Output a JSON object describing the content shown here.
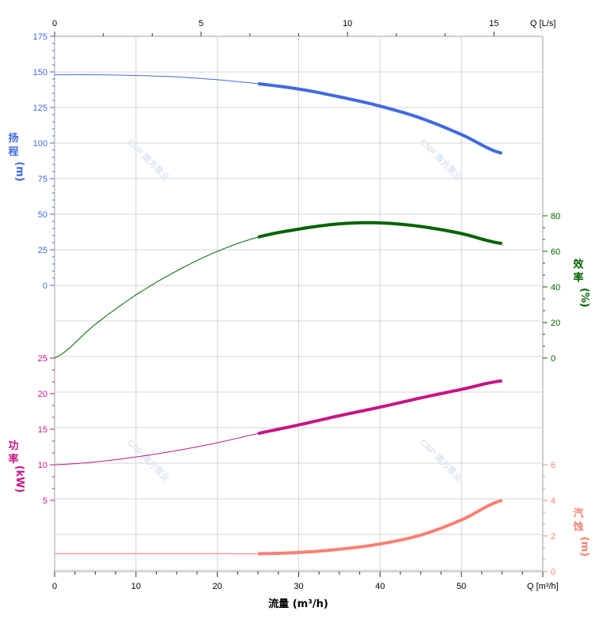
{
  "chart_data": {
    "type": "line",
    "title": "",
    "xlabel": "流量 (m³/h)",
    "x_axis_end_label": "Q [m³/h]",
    "top_axis_label": "Q [L/s]",
    "xlim": [
      0,
      60
    ],
    "x_ticks": [
      0,
      10,
      20,
      30,
      40,
      50
    ],
    "top_xlim_ls": [
      0,
      16.67
    ],
    "top_ticks": [
      0,
      5,
      10,
      15
    ],
    "grid": true,
    "axes": {
      "head": {
        "label": [
          "扬",
          "程",
          "(m)"
        ],
        "ylim": [
          -200,
          175
        ],
        "ticks": [
          0,
          25,
          50,
          75,
          100,
          125,
          150,
          175
        ],
        "color": "#4169e1",
        "side": "left"
      },
      "power": {
        "label": [
          "功",
          "率",
          "(kW)"
        ],
        "ylim": [
          0,
          30
        ],
        "ticks": [
          5,
          10,
          15,
          20,
          25
        ],
        "color": "#c71585",
        "side": "left"
      },
      "efficiency": {
        "label": [
          "效",
          "率",
          "(%)"
        ],
        "ylim": [
          0,
          80
        ],
        "ticks": [
          0,
          20,
          40,
          60,
          80
        ],
        "color": "#006400",
        "side": "right"
      },
      "npsh": {
        "label": [
          "汽",
          "蚀",
          "(m)"
        ],
        "ylim": [
          0,
          6
        ],
        "ticks": [
          0,
          2,
          4,
          6
        ],
        "color": "#fa8072",
        "side": "right"
      }
    },
    "operating_range": [
      25,
      55
    ],
    "x": [
      0,
      5,
      10,
      15,
      20,
      25,
      30,
      35,
      40,
      45,
      50,
      55
    ],
    "series": [
      {
        "name": "Head",
        "axis": "head",
        "color": "#4169e1",
        "values": [
          148,
          148,
          147.5,
          146.5,
          144.5,
          141.7,
          138,
          132.5,
          126,
          117.5,
          106,
          92.8
        ]
      },
      {
        "name": "Efficiency",
        "axis": "efficiency",
        "color": "#006400",
        "values": [
          0,
          19,
          35.5,
          49,
          60,
          68,
          72.5,
          75.5,
          76,
          74,
          70,
          64.4
        ]
      },
      {
        "name": "Power",
        "axis": "power",
        "color": "#c71585",
        "values": [
          10,
          10.4,
          11.1,
          12,
          13.1,
          14.4,
          15.6,
          16.9,
          18.1,
          19.4,
          20.6,
          21.8
        ]
      },
      {
        "name": "NPSH",
        "axis": "npsh",
        "color": "#fa8072",
        "values": [
          1.0,
          1.0,
          1.0,
          1.0,
          1.0,
          1.0,
          1.07,
          1.25,
          1.55,
          2.05,
          2.9,
          4.0
        ]
      }
    ],
    "watermark": "CNP 南方泵业"
  }
}
